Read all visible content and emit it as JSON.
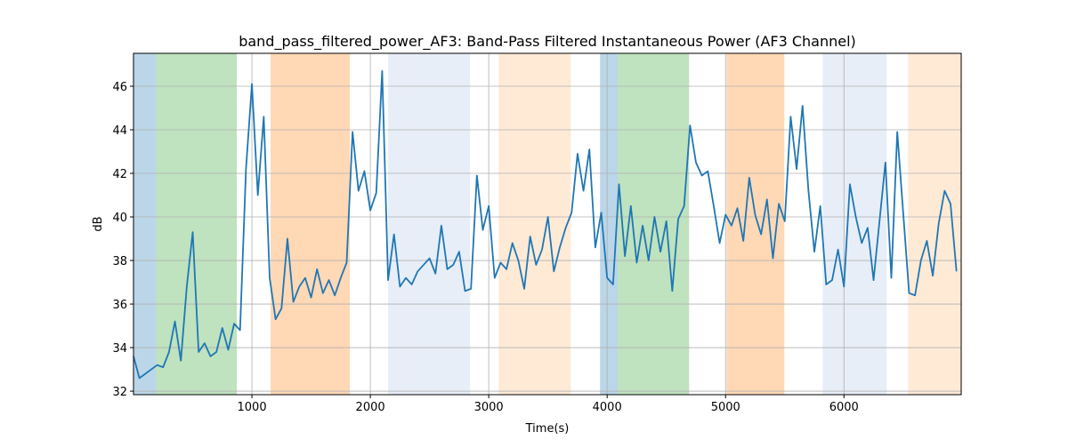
{
  "chart_data": {
    "type": "line",
    "title": "band_pass_filtered_power_AF3: Band-Pass Filtered Instantaneous Power (AF3 Channel)",
    "xlabel": "Time(s)",
    "ylabel": "dB",
    "xlim": [
      0,
      6990
    ],
    "ylim": [
      31.84,
      47.51
    ],
    "xticks": [
      1000,
      2000,
      3000,
      4000,
      5000,
      6000
    ],
    "yticks": [
      32,
      34,
      36,
      38,
      40,
      42,
      44,
      46
    ],
    "grid": true,
    "spans": [
      {
        "x0": 0,
        "x1": 190,
        "color": "#1f77b4",
        "opacity": 0.3
      },
      {
        "x0": 190,
        "x1": 872,
        "color": "#2ca02c",
        "opacity": 0.3
      },
      {
        "x0": 1158,
        "x1": 1827,
        "color": "#ff7f0e",
        "opacity": 0.3
      },
      {
        "x0": 2150,
        "x1": 2842,
        "color": "#aec7e8",
        "opacity": 0.3
      },
      {
        "x0": 3083,
        "x1": 3692,
        "color": "#ffbb78",
        "opacity": 0.3
      },
      {
        "x0": 3940,
        "x1": 4090,
        "color": "#1f77b4",
        "opacity": 0.3
      },
      {
        "x0": 4090,
        "x1": 4692,
        "color": "#2ca02c",
        "opacity": 0.3
      },
      {
        "x0": 5008,
        "x1": 5496,
        "color": "#ff7f0e",
        "opacity": 0.3
      },
      {
        "x0": 5820,
        "x1": 6361,
        "color": "#aec7e8",
        "opacity": 0.3
      },
      {
        "x0": 6541,
        "x1": 6990,
        "color": "#ffbb78",
        "opacity": 0.3
      }
    ],
    "x": [
      0,
      50,
      100,
      150,
      200,
      250,
      300,
      350,
      400,
      450,
      500,
      550,
      600,
      650,
      700,
      750,
      800,
      850,
      900,
      950,
      1000,
      1050,
      1100,
      1150,
      1200,
      1250,
      1300,
      1350,
      1400,
      1450,
      1500,
      1550,
      1600,
      1650,
      1700,
      1750,
      1800,
      1850,
      1900,
      1950,
      2000,
      2050,
      2100,
      2150,
      2200,
      2250,
      2300,
      2350,
      2400,
      2450,
      2500,
      2550,
      2600,
      2650,
      2700,
      2750,
      2800,
      2850,
      2900,
      2950,
      3000,
      3050,
      3100,
      3150,
      3200,
      3250,
      3300,
      3350,
      3400,
      3450,
      3500,
      3550,
      3600,
      3650,
      3700,
      3750,
      3800,
      3850,
      3900,
      3950,
      4000,
      4050,
      4100,
      4150,
      4200,
      4250,
      4300,
      4350,
      4400,
      4450,
      4500,
      4550,
      4600,
      4650,
      4700,
      4750,
      4800,
      4850,
      4900,
      4950,
      5000,
      5050,
      5100,
      5150,
      5200,
      5250,
      5300,
      5350,
      5400,
      5450,
      5500,
      5550,
      5600,
      5650,
      5700,
      5750,
      5800,
      5850,
      5900,
      5950,
      6000,
      6050,
      6100,
      6150,
      6200,
      6250,
      6300,
      6350,
      6400,
      6450,
      6500,
      6550,
      6600,
      6650,
      6700,
      6750,
      6800,
      6850,
      6900,
      6950
    ],
    "series": [
      {
        "color": "#1f77b4",
        "values": [
          33.6,
          32.6,
          32.8,
          33.0,
          33.2,
          33.1,
          33.8,
          35.2,
          33.4,
          36.8,
          39.3,
          33.8,
          34.2,
          33.6,
          33.8,
          34.9,
          33.9,
          35.1,
          34.8,
          42.2,
          46.1,
          41.0,
          44.6,
          37.2,
          35.3,
          35.8,
          39.0,
          36.1,
          36.8,
          37.2,
          36.3,
          37.6,
          36.5,
          37.1,
          36.4,
          37.2,
          37.9,
          43.9,
          41.2,
          42.1,
          40.3,
          41.1,
          46.7,
          37.1,
          39.2,
          36.8,
          37.2,
          36.9,
          37.5,
          37.8,
          38.1,
          37.4,
          39.6,
          37.6,
          37.8,
          38.4,
          36.6,
          36.7,
          41.9,
          39.4,
          40.5,
          37.2,
          37.9,
          37.6,
          38.8,
          38.0,
          36.7,
          39.1,
          37.8,
          38.5,
          40.0,
          37.5,
          38.6,
          39.5,
          40.2,
          42.9,
          41.2,
          43.1,
          38.6,
          40.2,
          37.2,
          36.9,
          41.5,
          38.2,
          40.5,
          37.9,
          39.6,
          38.0,
          40.0,
          38.4,
          39.8,
          36.6,
          39.9,
          40.5,
          44.2,
          42.5,
          41.9,
          42.1,
          40.5,
          38.8,
          40.1,
          39.6,
          40.4,
          38.9,
          41.8,
          40.1,
          39.2,
          40.8,
          38.1,
          40.6,
          39.8,
          44.6,
          42.2,
          45.1,
          41.2,
          38.4,
          40.5,
          36.9,
          37.1,
          38.5,
          36.8,
          41.5,
          40.0,
          38.8,
          39.5,
          37.1,
          39.8,
          42.5,
          37.2,
          43.9,
          40.2,
          36.5,
          36.4,
          38.0,
          38.9,
          37.3,
          39.7,
          41.2,
          40.6,
          37.5
        ]
      }
    ]
  }
}
